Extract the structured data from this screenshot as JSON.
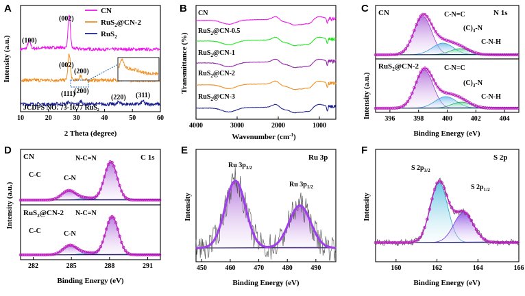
{
  "chart_data": [
    {
      "id": "A",
      "type": "line",
      "title": "",
      "xlabel": "2 Theta (degree)",
      "ylabel": "Intensity (a.u.)",
      "xlim": [
        10,
        60
      ],
      "xticks": [
        10,
        20,
        30,
        40,
        50,
        60
      ],
      "legend_position": "top-right",
      "series": [
        {
          "name": "CN",
          "color": "#ee10ee",
          "peaks": [
            [
              13.1,
              0.25
            ],
            [
              27.4,
              1.0
            ]
          ]
        },
        {
          "name": "RuS₂@CN-2",
          "color": "#f08c1e",
          "peaks": [
            [
              27.4,
              1.0
            ],
            [
              31.5,
              0.18
            ]
          ]
        },
        {
          "name": "RuS₂",
          "color": "#1a1f8e",
          "peaks": [
            [
              27.1,
              0.3
            ],
            [
              31.6,
              0.45
            ],
            [
              45.3,
              0.4
            ],
            [
              53.7,
              0.45
            ]
          ]
        }
      ],
      "annotations": [
        "(100)",
        "(002)",
        "(002)",
        "(200)",
        "(111)",
        "(200)",
        "(220)",
        "(311)"
      ],
      "reference": "JCDPS NO. 73-1677 RuS₂"
    },
    {
      "id": "B",
      "type": "line",
      "title": "",
      "xlabel": "Wavenumber (cm⁻¹)",
      "ylabel": "Transmittance (%)",
      "xlim": [
        4000,
        600
      ],
      "xticks": [
        4000,
        3000,
        2000,
        1000
      ],
      "series": [
        {
          "name": "CN",
          "color": "#ee10ee"
        },
        {
          "name": "RuS₂@CN-0.5",
          "color": "#1ee61e"
        },
        {
          "name": "RuS₂@CN-1",
          "color": "#8e1ea8"
        },
        {
          "name": "RuS₂@CN-2",
          "color": "#f08c1e"
        },
        {
          "name": "RuS₂@CN-3",
          "color": "#1a1f8e"
        }
      ],
      "features_cm1": [
        3200,
        2170,
        1630,
        1420,
        1240,
        810
      ]
    },
    {
      "id": "C",
      "type": "line",
      "title": "N 1s",
      "xlabel": "Binding Energy (eV)",
      "ylabel": "Intensity (a.u.)",
      "xlim": [
        395,
        405
      ],
      "xticks": [
        396,
        398,
        400,
        402,
        404
      ],
      "subpanels": [
        {
          "sample": "CN",
          "components": [
            {
              "label": "C-N=C",
              "center": 398.3
            },
            {
              "label": "(C)₃-N",
              "center": 399.7
            },
            {
              "label": "C-N-H",
              "center": 400.9
            }
          ]
        },
        {
          "sample": "RuS₂@CN-2",
          "components": [
            {
              "label": "C-N=C",
              "center": 398.4
            },
            {
              "label": "(C)₃-N",
              "center": 399.9
            },
            {
              "label": "C-N-H",
              "center": 401.0
            }
          ]
        }
      ]
    },
    {
      "id": "D",
      "type": "line",
      "title": "C 1s",
      "xlabel": "Binding Energy (eV)",
      "ylabel": "Intensity (a.u.)",
      "xlim": [
        281,
        292
      ],
      "xticks": [
        282,
        285,
        288,
        291
      ],
      "subpanels": [
        {
          "sample": "CN",
          "components": [
            {
              "label": "C-C",
              "center": 284.8
            },
            {
              "label": "C-N",
              "center": 286.2
            },
            {
              "label": "N-C=N",
              "center": 288.1
            }
          ]
        },
        {
          "sample": "RuS₂@CN-2",
          "components": [
            {
              "label": "C-C",
              "center": 284.9
            },
            {
              "label": "C-N",
              "center": 286.3
            },
            {
              "label": "N-C=N",
              "center": 288.2
            }
          ]
        }
      ]
    },
    {
      "id": "E",
      "type": "line",
      "title": "Ru 3p",
      "xlabel": "Binding Energy (eV)",
      "ylabel": "Intensity",
      "xlim": [
        448,
        497
      ],
      "xticks": [
        450,
        460,
        470,
        480,
        490
      ],
      "components": [
        {
          "label": "Ru 3p3/2",
          "center": 461.8
        },
        {
          "label": "Ru 3p1/2",
          "center": 484.4
        }
      ]
    },
    {
      "id": "F",
      "type": "line",
      "title": "S 2p",
      "xlabel": "Binding Energy (eV)",
      "ylabel": "Intensity",
      "xlim": [
        159,
        166
      ],
      "xticks": [
        160,
        162,
        164,
        166
      ],
      "components": [
        {
          "label": "S 2p3/2",
          "center": 162.1
        },
        {
          "label": "S 2p1/2",
          "center": 163.3
        }
      ]
    }
  ],
  "A": {
    "letter": "A",
    "xlabel": "2 Theta (degree)",
    "ylabel": "Intensity (a.u.)",
    "legend": [
      "CN",
      "RuS",
      "@CN-2",
      "RuS"
    ],
    "sub2": "2",
    "ann": {
      "p100": "(100)",
      "p002a": "(002)",
      "p002b": "(002)",
      "p200a": "(200)",
      "p111": "(111)",
      "p200b": "(200)",
      "p220": "(220)",
      "p311": "(311)"
    },
    "ref": "JCDPS NO. 73-1677 RuS",
    "ticks": [
      "10",
      "20",
      "30",
      "40",
      "50",
      "60"
    ]
  },
  "B": {
    "letter": "B",
    "xlabel": "Wavenumber (cm",
    "xlabel_sup": "-1",
    "xlabel_end": ")",
    "ylabel": "Transmittance (%)",
    "names": [
      "CN",
      "RuS",
      "@CN-0.5",
      "RuS",
      "@CN-1",
      "RuS",
      "@CN-2",
      "RuS",
      "@CN-3"
    ],
    "ticks": [
      "4000",
      "3000",
      "2000",
      "1000"
    ]
  },
  "C": {
    "letter": "C",
    "title": "N 1s",
    "xlabel": "Binding Energy (eV)",
    "ylabel": "Intensity (a.u.)",
    "s1": "CN",
    "s2a": "RuS",
    "s2b": "@CN-2",
    "l1": "C-N=C",
    "l2a": "(C)",
    "l2b": "3",
    "l2c": "-N",
    "l3": "C-N-H",
    "ticks": [
      "396",
      "398",
      "400",
      "402",
      "404"
    ]
  },
  "D": {
    "letter": "D",
    "title": "C 1s",
    "xlabel": "Binding Energy (eV)",
    "ylabel": "Intensity (a.u.)",
    "s1": "CN",
    "s2a": "RuS",
    "s2b": "@CN-2",
    "l1": "N-C=N",
    "l2": "C-C",
    "l3": "C-N",
    "ticks": [
      "282",
      "285",
      "288",
      "291"
    ]
  },
  "E": {
    "letter": "E",
    "title": "Ru 3p",
    "xlabel": "Binding Energy (eV)",
    "ylabel": "Intensity",
    "p1a": "Ru 3p",
    "p1b": "3/2",
    "p2a": "Ru 3p",
    "p2b": "1/2",
    "ticks": [
      "450",
      "460",
      "470",
      "480",
      "490"
    ]
  },
  "F": {
    "letter": "F",
    "title": "S 2p",
    "xlabel": "Binding Energy (eV)",
    "ylabel": "Intensity",
    "p1a": "S 2p",
    "p1b": "3/2",
    "p2a": "S 2p",
    "p2b": "1/2",
    "ticks": [
      "160",
      "162",
      "164",
      "166"
    ]
  }
}
